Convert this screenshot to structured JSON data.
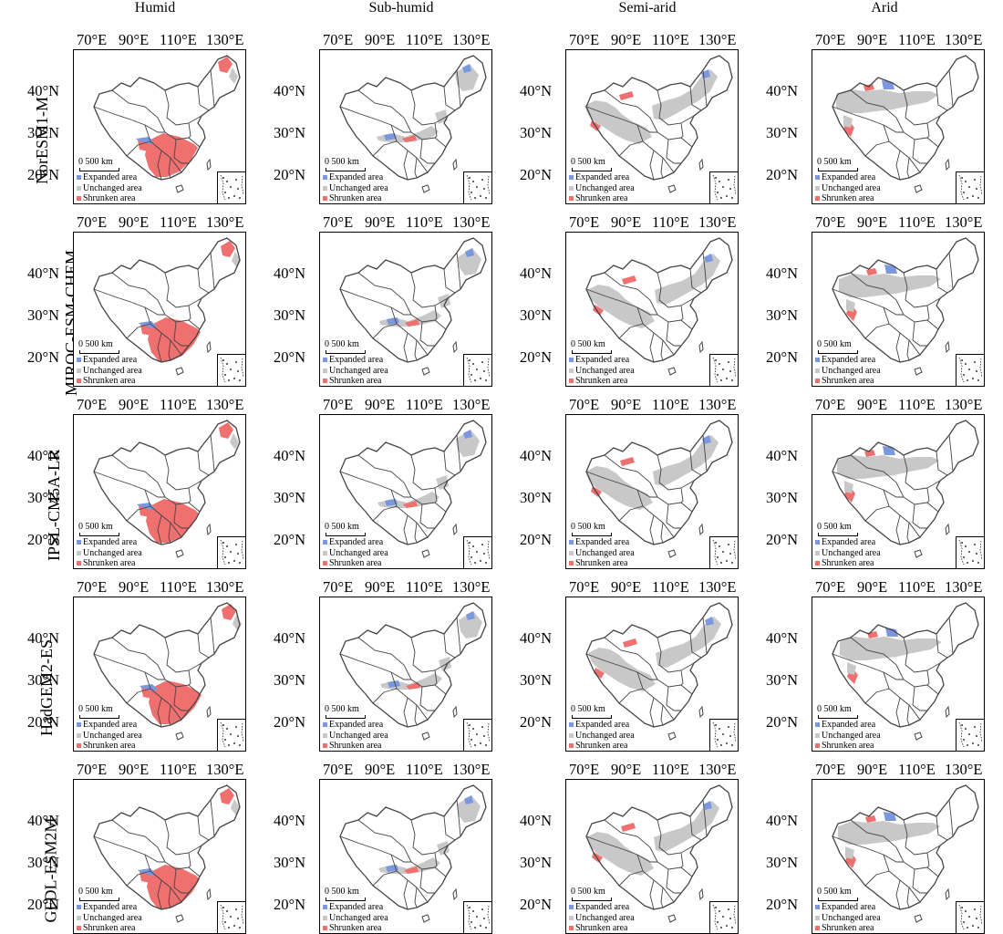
{
  "columns": [
    "Humid",
    "Sub-humid",
    "Semi-arid",
    "Arid"
  ],
  "rows": [
    "NorESM1-M",
    "MIROC-ESM-CHEM",
    "IPSL-CM5A-LR",
    "HadGEM2-ES",
    "GFDL-ESM2M"
  ],
  "longitude_labels": [
    "70°E",
    "90°E",
    "110°E",
    "130°E"
  ],
  "latitude_labels": [
    "40°N",
    "30°N",
    "20°N"
  ],
  "scale_label": "0  500 km",
  "legend": [
    {
      "label": "Expanded area",
      "color": "#7b97de"
    },
    {
      "label": "Unchanged area",
      "color": "#c8c8c8"
    },
    {
      "label": "Shrunken area",
      "color": "#f07070"
    }
  ],
  "colors": {
    "boundary": "#444444",
    "land": "#ffffff"
  }
}
